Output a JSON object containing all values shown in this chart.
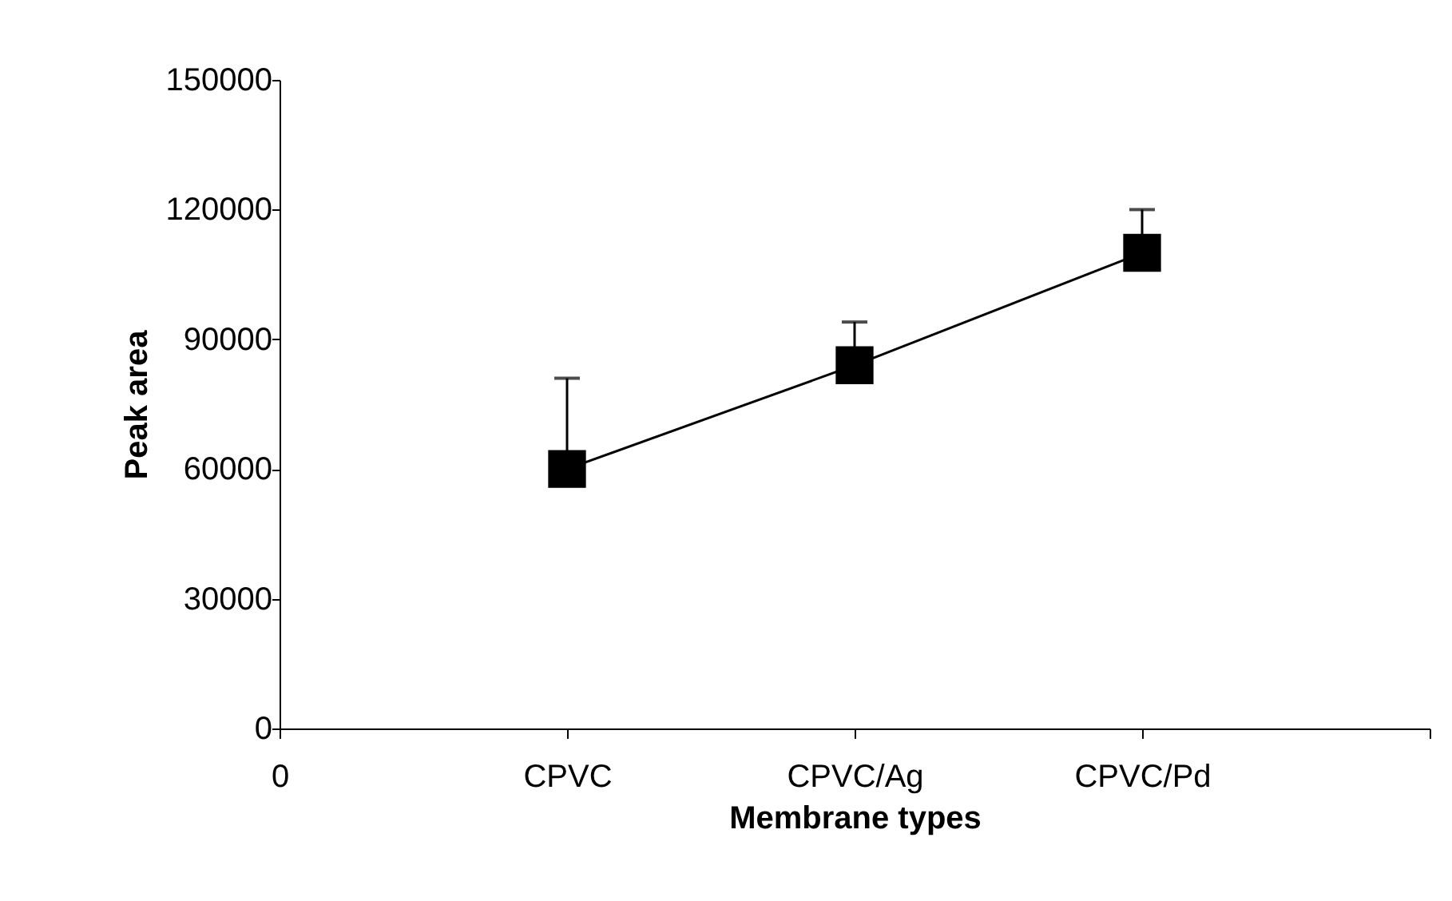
{
  "chart_data": {
    "type": "line",
    "xlabel": "Membrane types",
    "ylabel": "Peak area",
    "categories": [
      "0",
      "CPVC",
      "CPVC/Ag",
      "CPVC/Pd",
      null
    ],
    "series": [
      {
        "color": "#000000",
        "values": [
          null,
          60000,
          84000,
          110000,
          null
        ],
        "errors": [
          null,
          [
            60000,
            81000
          ],
          [
            84000,
            94000
          ],
          [
            110000,
            120000
          ],
          null
        ]
      }
    ],
    "ylim": [
      0,
      150000
    ],
    "yticks": [
      0,
      30000,
      60000,
      90000,
      120000,
      150000
    ],
    "marker": "square",
    "line_style": "solid"
  }
}
